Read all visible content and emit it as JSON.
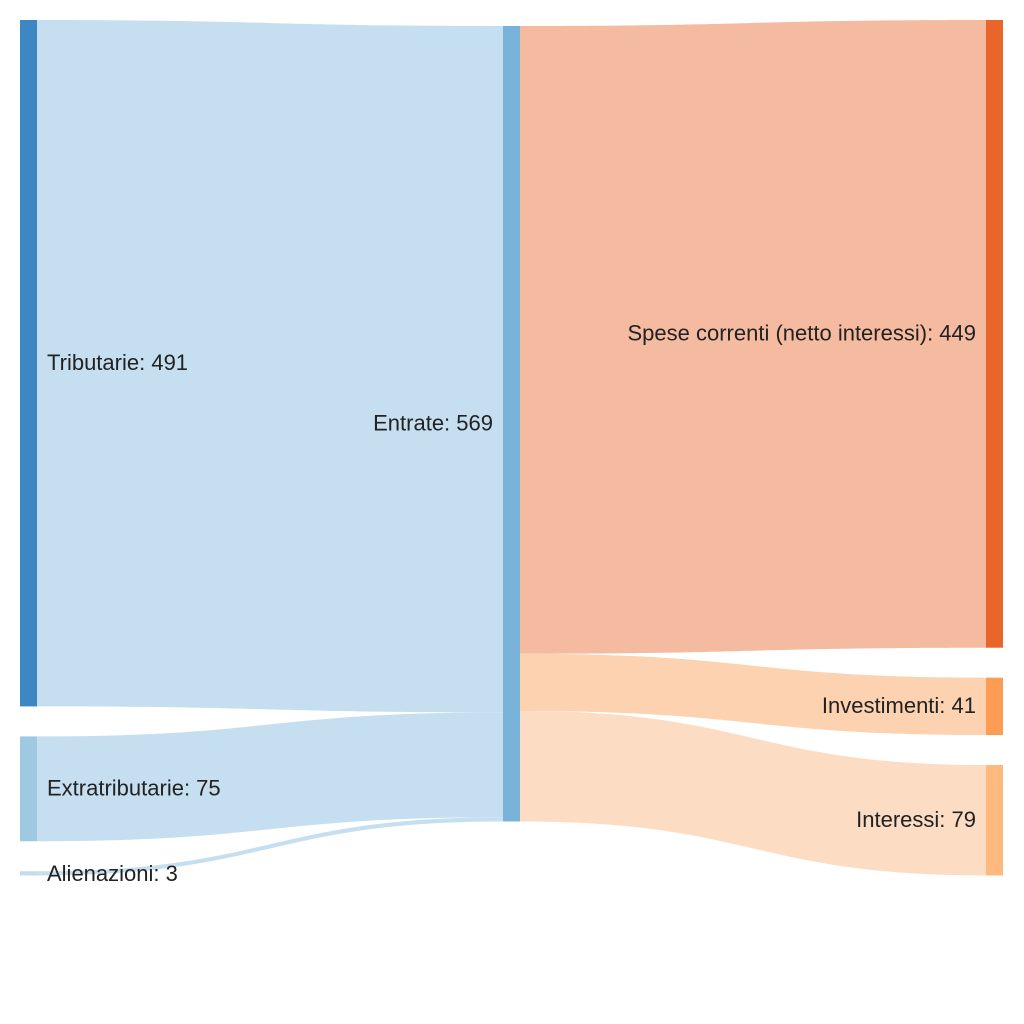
{
  "chart_data": {
    "type": "sankey",
    "title": "",
    "nodes": [
      {
        "id": "tributarie",
        "label": "Tributarie: 491",
        "value": 491,
        "column": 0,
        "color": "#3d88c2"
      },
      {
        "id": "extratributarie",
        "label": "Extratributarie: 75",
        "value": 75,
        "column": 0,
        "color": "#9ecae1"
      },
      {
        "id": "alienazioni",
        "label": "Alienazioni: 3",
        "value": 3,
        "column": 0,
        "color": "#c6dbef"
      },
      {
        "id": "entrate",
        "label": "Entrate: 569",
        "value": 569,
        "column": 1,
        "color": "#7ab3d9"
      },
      {
        "id": "spese",
        "label": "Spese correnti (netto interessi): 449",
        "value": 449,
        "column": 2,
        "color": "#e8662a"
      },
      {
        "id": "investimenti",
        "label": "Investimenti: 41",
        "value": 41,
        "column": 2,
        "color": "#fc9c55"
      },
      {
        "id": "interessi",
        "label": "Interessi: 79",
        "value": 79,
        "column": 2,
        "color": "#fdb97f"
      }
    ],
    "links": [
      {
        "source": "tributarie",
        "target": "entrate",
        "value": 491,
        "color": "#c6dff0"
      },
      {
        "source": "extratributarie",
        "target": "entrate",
        "value": 75,
        "color": "#c6dff0"
      },
      {
        "source": "alienazioni",
        "target": "entrate",
        "value": 3,
        "color": "#c6dff0"
      },
      {
        "source": "entrate",
        "target": "spese",
        "value": 449,
        "color": "#f5bba0"
      },
      {
        "source": "entrate",
        "target": "investimenti",
        "value": 41,
        "color": "#fdd2b1"
      },
      {
        "source": "entrate",
        "target": "interessi",
        "value": 79,
        "color": "#fddcc4"
      }
    ]
  }
}
